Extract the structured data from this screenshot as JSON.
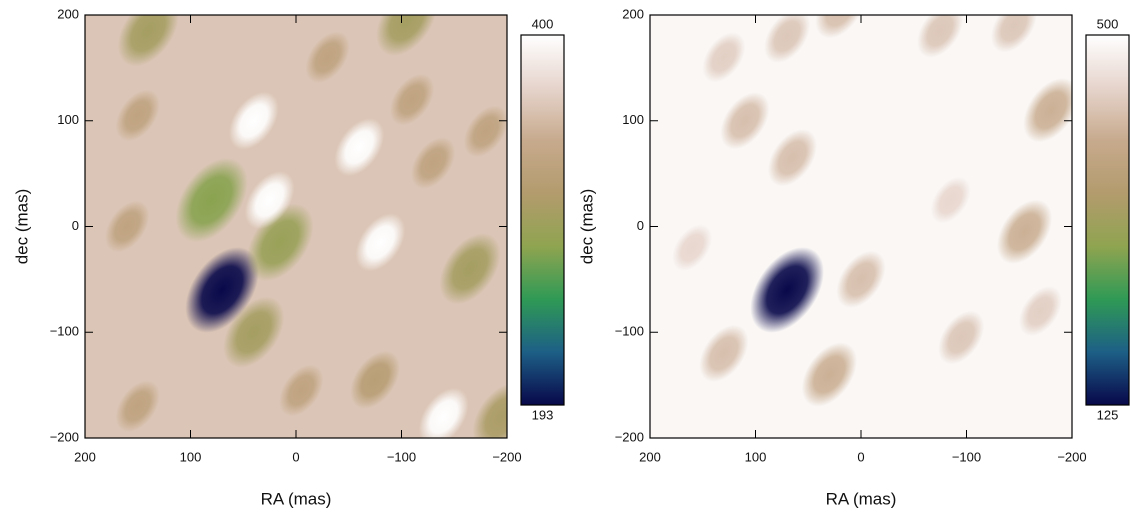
{
  "chart_data": [
    {
      "type": "heatmap",
      "xlabel": "RA (mas)",
      "ylabel": "dec (mas)",
      "xlim": [
        200,
        -200
      ],
      "ylim": [
        -200,
        200
      ],
      "xticks": [
        200,
        100,
        0,
        {
          "value": -100,
          "label": "−100"
        },
        {
          "value": -200,
          "label": "−200"
        }
      ],
      "yticks": [
        {
          "value": -200,
          "label": "−200"
        },
        {
          "value": -100,
          "label": "−100"
        },
        0,
        100,
        200
      ],
      "clim": [
        193,
        400
      ],
      "cticks": [
        193,
        400
      ],
      "background": 360,
      "colormap": [
        "#08084a",
        "#1d5f86",
        "#2f9a55",
        "#8fa450",
        "#b39b6d",
        "#c7aa8d",
        "#e6d4cc",
        "#ffffff"
      ],
      "features": [
        {
          "x": 70,
          "y": -60,
          "value": 193
        },
        {
          "x": 80,
          "y": 25,
          "value": 280
        },
        {
          "x": 15,
          "y": -15,
          "value": 290
        },
        {
          "x": 40,
          "y": -100,
          "value": 300
        },
        {
          "x": 140,
          "y": 185,
          "value": 300
        },
        {
          "x": -105,
          "y": 195,
          "value": 300
        },
        {
          "x": -165,
          "y": -40,
          "value": 300
        },
        {
          "x": -195,
          "y": -180,
          "value": 305
        },
        {
          "x": -75,
          "y": -145,
          "value": 320
        },
        {
          "x": -60,
          "y": 75,
          "value": 400
        },
        {
          "x": 25,
          "y": 25,
          "value": 400
        },
        {
          "x": -80,
          "y": -15,
          "value": 400
        },
        {
          "x": -140,
          "y": -180,
          "value": 400
        },
        {
          "x": 40,
          "y": 100,
          "value": 400
        },
        {
          "x": -30,
          "y": 160,
          "value": 330
        },
        {
          "x": -110,
          "y": 120,
          "value": 330
        },
        {
          "x": -130,
          "y": 60,
          "value": 330
        },
        {
          "x": 150,
          "y": 105,
          "value": 330
        },
        {
          "x": 160,
          "y": 0,
          "value": 330
        },
        {
          "x": -180,
          "y": 90,
          "value": 330
        },
        {
          "x": 150,
          "y": -170,
          "value": 330
        },
        {
          "x": -5,
          "y": -155,
          "value": 330
        }
      ]
    },
    {
      "type": "heatmap",
      "xlabel": "RA (mas)",
      "ylabel": "dec (mas)",
      "xlim": [
        200,
        -200
      ],
      "ylim": [
        -200,
        200
      ],
      "xticks": [
        200,
        100,
        0,
        {
          "value": -100,
          "label": "−100"
        },
        {
          "value": -200,
          "label": "−200"
        }
      ],
      "yticks": [
        {
          "value": -200,
          "label": "−200"
        },
        {
          "value": -100,
          "label": "−100"
        },
        0,
        100,
        200
      ],
      "clim": [
        125,
        500
      ],
      "cticks": [
        125,
        500
      ],
      "background": 490,
      "colormap": [
        "#08084a",
        "#1d5f86",
        "#2f9a55",
        "#8fa450",
        "#b39b6d",
        "#c7aa8d",
        "#e6d4cc",
        "#ffffff"
      ],
      "features": [
        {
          "x": 70,
          "y": -60,
          "value": 125
        },
        {
          "x": 130,
          "y": -120,
          "value": 420
        },
        {
          "x": 110,
          "y": 100,
          "value": 420
        },
        {
          "x": 130,
          "y": 160,
          "value": 440
        },
        {
          "x": 65,
          "y": 65,
          "value": 420
        },
        {
          "x": 30,
          "y": -140,
          "value": 400
        },
        {
          "x": 0,
          "y": -50,
          "value": 420
        },
        {
          "x": -95,
          "y": -105,
          "value": 430
        },
        {
          "x": -155,
          "y": -5,
          "value": 400
        },
        {
          "x": -180,
          "y": 110,
          "value": 400
        },
        {
          "x": -170,
          "y": -80,
          "value": 440
        },
        {
          "x": -75,
          "y": 185,
          "value": 430
        },
        {
          "x": 20,
          "y": 205,
          "value": 420
        },
        {
          "x": -145,
          "y": 190,
          "value": 430
        },
        {
          "x": -85,
          "y": 25,
          "value": 450
        },
        {
          "x": 160,
          "y": -20,
          "value": 450
        },
        {
          "x": 70,
          "y": 180,
          "value": 430
        }
      ]
    }
  ]
}
